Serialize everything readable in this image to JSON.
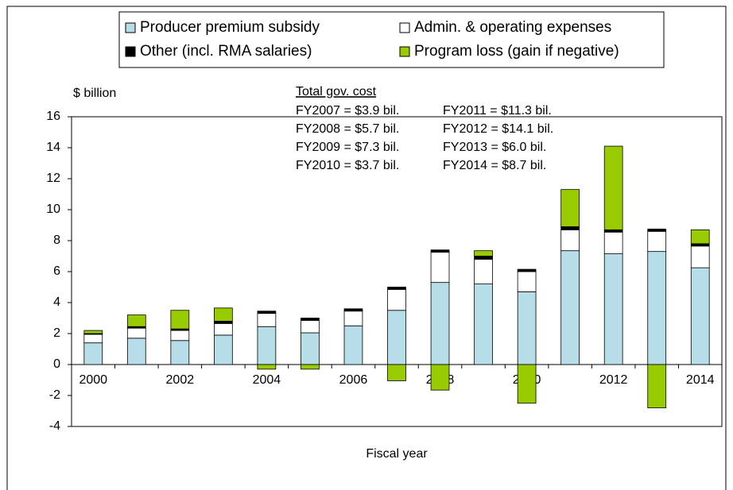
{
  "chart_data": {
    "type": "stacked_bar",
    "y_label": "$ billion",
    "x_label": "Fiscal year",
    "annotation_title": "Total gov. cost",
    "annotations": [
      "FY2007 = $3.9 bil.",
      "FY2011 = $11.3 bil.",
      "FY2008 = $5.7 bil.",
      "FY2012 = $14.1 bil.",
      "FY2009 = $7.3 bil.",
      "FY2013 = $6.0 bil.",
      "FY2010 = $3.7 bil.",
      "FY2014 = $8.7 bil."
    ],
    "categories": [
      "2000",
      null,
      "2002",
      null,
      "2004",
      null,
      "2006",
      null,
      "2008",
      null,
      "2010",
      null,
      "2012",
      null,
      "2014"
    ],
    "series": [
      {
        "name": "Producer premium subsidy",
        "color": "#b7dde8",
        "values": [
          1.4,
          1.7,
          1.55,
          1.9,
          2.45,
          2.05,
          2.5,
          3.5,
          5.3,
          5.2,
          4.7,
          7.35,
          7.15,
          7.3,
          6.25
        ]
      },
      {
        "name": "Admin. & operating expenses",
        "color": "#ffffff",
        "values": [
          0.55,
          0.65,
          0.65,
          0.75,
          0.85,
          0.8,
          0.95,
          1.35,
          1.95,
          1.6,
          1.3,
          1.35,
          1.4,
          1.3,
          1.4
        ]
      },
      {
        "name": "Other (incl. RMA salaries)",
        "color": "#000000",
        "values": [
          0.05,
          0.1,
          0.1,
          0.15,
          0.15,
          0.15,
          0.15,
          0.15,
          0.15,
          0.2,
          0.15,
          0.2,
          0.15,
          0.15,
          0.15
        ]
      },
      {
        "name": "Program loss (gain if negative)",
        "color": "#99cc00",
        "values": [
          0.2,
          0.75,
          1.2,
          0.85,
          -0.3,
          -0.3,
          0,
          -1.05,
          -1.65,
          0.35,
          -2.5,
          2.4,
          5.4,
          -2.8,
          0.9
        ]
      }
    ],
    "ylim": [
      -4,
      16
    ],
    "yticks": [
      -4,
      -2,
      0,
      2,
      4,
      6,
      8,
      10,
      12,
      14,
      16
    ]
  }
}
